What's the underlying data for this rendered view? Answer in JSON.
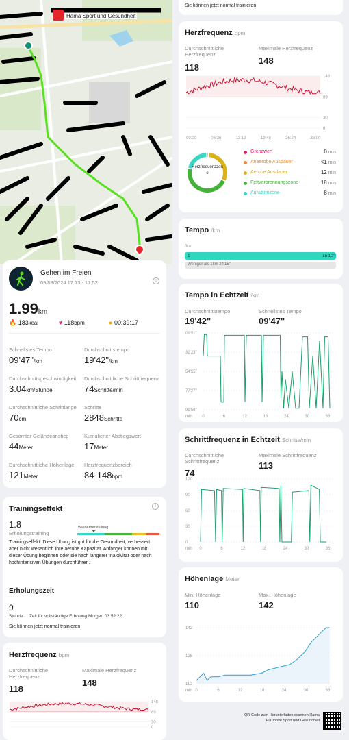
{
  "map": {
    "title": "Hama Sport und Gesundheit"
  },
  "workout": {
    "name": "Gehen im Freien",
    "date": "09/08/2024 17:13 - 17:52",
    "distance": "1.99",
    "distance_unit": "km",
    "kcal": "183",
    "kcal_unit": "kcal",
    "bpm": "118",
    "bpm_unit": "bpm",
    "duration": "00:39:17",
    "stats": [
      {
        "label": "Schnellstes Tempo",
        "value": "09'47\"",
        "unit": "/km"
      },
      {
        "label": "Durchschnittstempo",
        "value": "19'42\"",
        "unit": "/km"
      },
      {
        "label": "Durchschnittsgeschwindigkeit",
        "value": "3.04",
        "unit": "km/Stunde"
      },
      {
        "label": "Durchschnittliche Schrittfrequenz",
        "value": "74",
        "unit": "Schritte/min"
      },
      {
        "label": "Durchschnittliche Schrittlänge",
        "value": "70",
        "unit": "cm"
      },
      {
        "label": "Schritte",
        "value": "2848",
        "unit": "Schritte"
      },
      {
        "label": "Gesamter Geländeanstieg",
        "value": "44",
        "unit": "Meter"
      },
      {
        "label": "Kumulierter Abstiegswert",
        "value": "17",
        "unit": "Meter"
      },
      {
        "label": "Durchschnittliche Höhenlage",
        "value": "121",
        "unit": "Meter"
      },
      {
        "label": "Herzfrequenzbereich",
        "value": "84-148",
        "unit": "bpm"
      }
    ]
  },
  "training": {
    "title": "Trainingseffekt",
    "value": "1.8",
    "category": "Erholungstraining",
    "scale_label": "Wiederherstellung",
    "description": "Trainingseffekt: Diese Übung ist gut für die Gesundheit, verbessert aber nicht wesentlich Ihre aerobe Kapazität. Anfänger können mit dieser Übung beginnen oder sie nach längerer Inaktivität oder nach hochintensiven Übungen durchführen.",
    "recovery_title": "Erholungszeit",
    "recovery_value": "9",
    "recovery_detail": "Stunde · . Zeit für vollständige Erholung Morgen 03:52:22",
    "recovery_note": "Sie können jetzt normal trainieren"
  },
  "heart": {
    "title": "Herzfrequenz",
    "unit": "bpm",
    "avg_label": "Durchschnittliche Herzfrequenz",
    "avg": "118",
    "max_label": "Maximale Herzfrequenz",
    "max": "148",
    "y_ticks": [
      "148",
      "89",
      "30",
      "0"
    ],
    "x_ticks": [
      "00:00",
      "06:36",
      "13:12",
      "19:48",
      "26:24",
      "33:00"
    ],
    "donut_label": "Herzfrequenzzone",
    "zones": [
      {
        "name": "Grenzwert",
        "value": "0",
        "unit": "min",
        "color": "#e0245e"
      },
      {
        "name": "Anaerobe Ausdauer",
        "value": "<1",
        "unit": "min",
        "color": "#f08a24"
      },
      {
        "name": "Aerobe Ausdauer",
        "value": "12",
        "unit": "min",
        "color": "#d9b21c"
      },
      {
        "name": "Fettverbrennungszone",
        "value": "18",
        "unit": "min",
        "color": "#45b23a"
      },
      {
        "name": "Aufwärmzone",
        "value": "8",
        "unit": "min",
        "color": "#3ad6c4"
      }
    ]
  },
  "tempo": {
    "title": "Tempo",
    "unit": "/km",
    "axis_unit": "/km",
    "bar_label": "1",
    "bar_value": "15'10\"",
    "note": "Weniger als 1km 24'15\""
  },
  "realtime_tempo": {
    "title": "Tempo in Echtzeit",
    "unit": "/km",
    "avg_label": "Durchschnittstempo",
    "avg": "19'42\"",
    "fast_label": "Schnellstes Tempo",
    "fast": "09'47\"",
    "y_ticks": [
      "09'51\"",
      "32'23\"",
      "54'55\"",
      "77'27\"",
      "99'59\""
    ],
    "x_ticks": [
      "min",
      "0",
      "6",
      "12",
      "18",
      "24",
      "30",
      "36"
    ]
  },
  "cadence": {
    "title": "Schrittfrequenz in Echtzeit",
    "unit": "Schritte/min",
    "avg_label": "Durchschnittliche Schrittfrequenz",
    "avg": "74",
    "max_label": "Maximale Schrittfrequenz",
    "max": "113",
    "y_ticks": [
      "120",
      "90",
      "60",
      "30",
      "0"
    ],
    "x_ticks": [
      "min",
      "0",
      "6",
      "12",
      "18",
      "24",
      "30",
      "36"
    ]
  },
  "altitude": {
    "title": "Höhenlage",
    "unit": "Meter",
    "min_label": "Min. Höhenlage",
    "min": "110",
    "max_label": "Max. Höhenlage",
    "max": "142",
    "y_ticks": [
      "142",
      "126",
      "110"
    ],
    "x_ticks": [
      "min",
      "0",
      "6",
      "12",
      "18",
      "24",
      "30",
      "36"
    ]
  },
  "footer": {
    "text": "QR-Code zum Herunterladen scannen Hama FIT move Sport und Gesundheit"
  },
  "top_note": "Sie können jetzt normal trainieren",
  "colors": {
    "heart": "#c8102e",
    "chart_green": "#18a06a",
    "route": "#59e020",
    "accent_teal": "#2fd7be"
  }
}
